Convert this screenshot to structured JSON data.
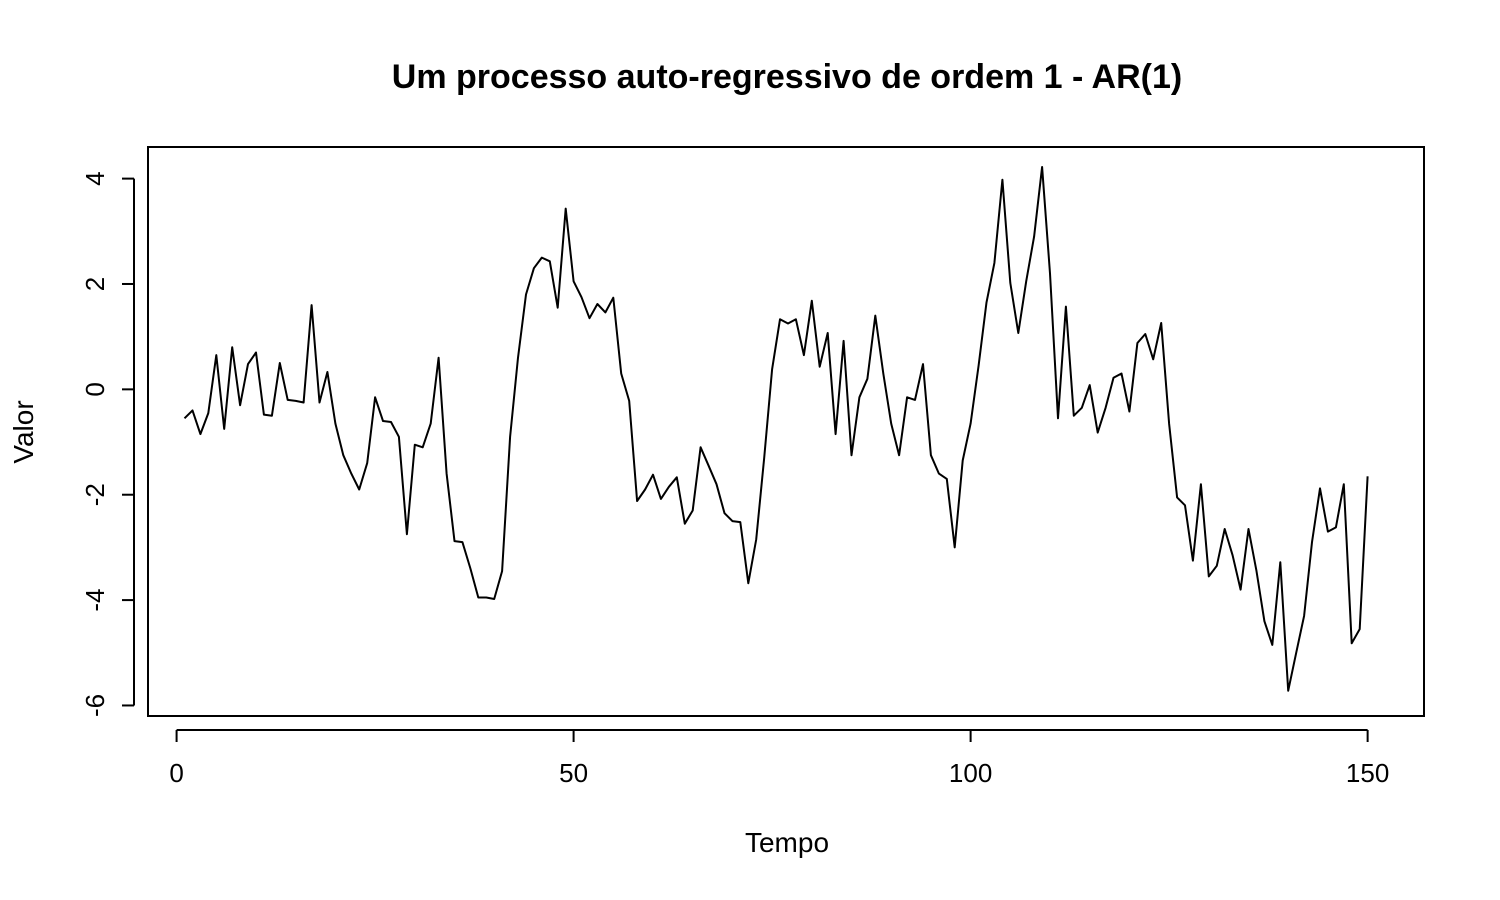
{
  "chart_data": {
    "type": "line",
    "title": "Um processo auto-regressivo de ordem 1 - AR(1)",
    "xlabel": "Tempo",
    "ylabel": "Valor",
    "xlim": [
      -3.6,
      157.1
    ],
    "ylim": [
      -6.2,
      4.6
    ],
    "x_ticks": [
      0,
      50,
      100,
      150
    ],
    "x_tick_labels": [
      "0",
      "50",
      "100",
      "150"
    ],
    "y_ticks": [
      -6,
      -4,
      -2,
      0,
      2,
      4
    ],
    "y_tick_labels": [
      "-6",
      "-4",
      "-2",
      "0",
      "2",
      "4"
    ],
    "grid": false,
    "legend": "none",
    "line_color": "#000000",
    "series": [
      {
        "x_start": 1,
        "values": [
          -0.55,
          -0.4,
          -0.85,
          -0.45,
          0.65,
          -0.75,
          0.8,
          -0.3,
          0.48,
          0.7,
          -0.48,
          -0.5,
          0.5,
          -0.2,
          -0.22,
          -0.25,
          1.6,
          -0.25,
          0.33,
          -0.65,
          -1.25,
          -1.6,
          -1.9,
          -1.4,
          -0.15,
          -0.6,
          -0.62,
          -0.9,
          -2.75,
          -1.05,
          -1.1,
          -0.65,
          0.6,
          -1.6,
          -2.88,
          -2.9,
          -3.4,
          -3.95,
          -3.95,
          -3.98,
          -3.45,
          -0.9,
          0.6,
          1.8,
          2.3,
          2.5,
          2.43,
          1.55,
          3.43,
          2.05,
          1.75,
          1.35,
          1.62,
          1.46,
          1.74,
          0.3,
          -0.22,
          -2.12,
          -1.9,
          -1.62,
          -2.08,
          -1.85,
          -1.67,
          -2.55,
          -2.3,
          -1.1,
          -1.45,
          -1.8,
          -2.35,
          -2.5,
          -2.52,
          -3.68,
          -2.85,
          -1.3,
          0.38,
          1.33,
          1.25,
          1.33,
          0.65,
          1.68,
          0.43,
          1.07,
          -0.85,
          0.92,
          -1.25,
          -0.15,
          0.2,
          1.4,
          0.3,
          -0.65,
          -1.25,
          -0.15,
          -0.2,
          0.48,
          -1.25,
          -1.6,
          -1.7,
          -3.0,
          -1.35,
          -0.65,
          0.45,
          1.65,
          2.4,
          3.98,
          2.02,
          1.07,
          2.05,
          2.9,
          4.22,
          2.2,
          -0.55,
          1.57,
          -0.5,
          -0.35,
          0.08,
          -0.82,
          -0.35,
          0.22,
          0.3,
          -0.42,
          0.88,
          1.05,
          0.57,
          1.26,
          -0.65,
          -2.05,
          -2.2,
          -3.25,
          -1.8,
          -3.55,
          -3.35,
          -2.65,
          -3.15,
          -3.8,
          -2.65,
          -3.45,
          -4.4,
          -4.85,
          -3.28,
          -5.72,
          -5.0,
          -4.3,
          -2.9,
          -1.88,
          -2.7,
          -2.62,
          -1.8,
          -4.82,
          -4.55,
          -1.65
        ]
      }
    ]
  }
}
